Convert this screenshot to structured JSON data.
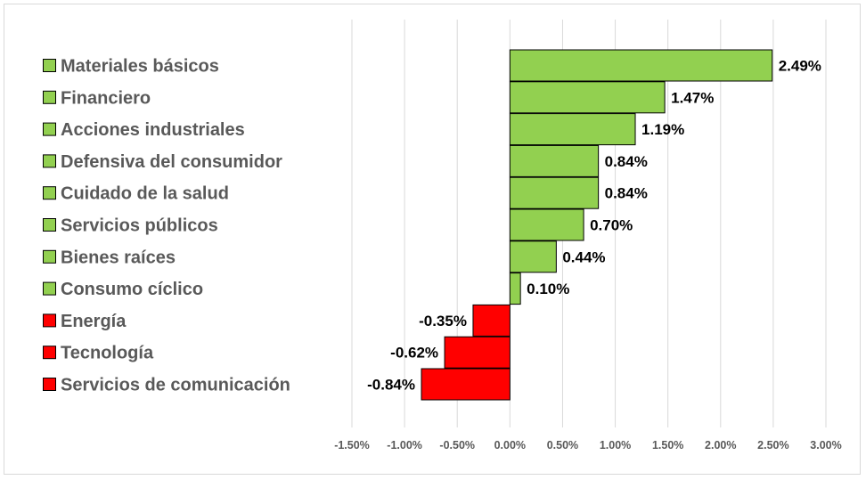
{
  "chart_data": {
    "type": "bar",
    "orientation": "horizontal",
    "categories": [
      "Materiales básicos",
      "Financiero",
      "Acciones industriales",
      "Defensiva del consumidor",
      "Cuidado de la salud",
      "Servicios públicos",
      "Bienes raíces",
      "Consumo cíclico",
      "Energía",
      "Tecnología",
      "Servicios de comunicación"
    ],
    "values": [
      2.49,
      1.47,
      1.19,
      0.84,
      0.84,
      0.7,
      0.44,
      0.1,
      -0.35,
      -0.62,
      -0.84
    ],
    "value_labels": [
      "2.49%",
      "1.47%",
      "1.19%",
      "0.84%",
      "0.84%",
      "0.70%",
      "0.44%",
      "0.10%",
      "-0.35%",
      "-0.62%",
      "-0.84%"
    ],
    "xlim": [
      -1.5,
      3.0
    ],
    "x_ticks": [
      -1.5,
      -1.0,
      -0.5,
      0.0,
      0.5,
      1.0,
      1.5,
      2.0,
      2.5,
      3.0
    ],
    "x_tick_labels": [
      "-1.50%",
      "-1.00%",
      "-0.50%",
      "0.00%",
      "0.50%",
      "1.00%",
      "1.50%",
      "2.00%",
      "2.50%",
      "3.00%"
    ],
    "grid": "vertical",
    "legend": "left",
    "colors": {
      "positive": "#92d050",
      "negative": "#ff0000",
      "bar_border": "#000000",
      "grid": "#d9d9d9",
      "text": "#595959"
    },
    "title": "",
    "xlabel": "",
    "ylabel": ""
  }
}
